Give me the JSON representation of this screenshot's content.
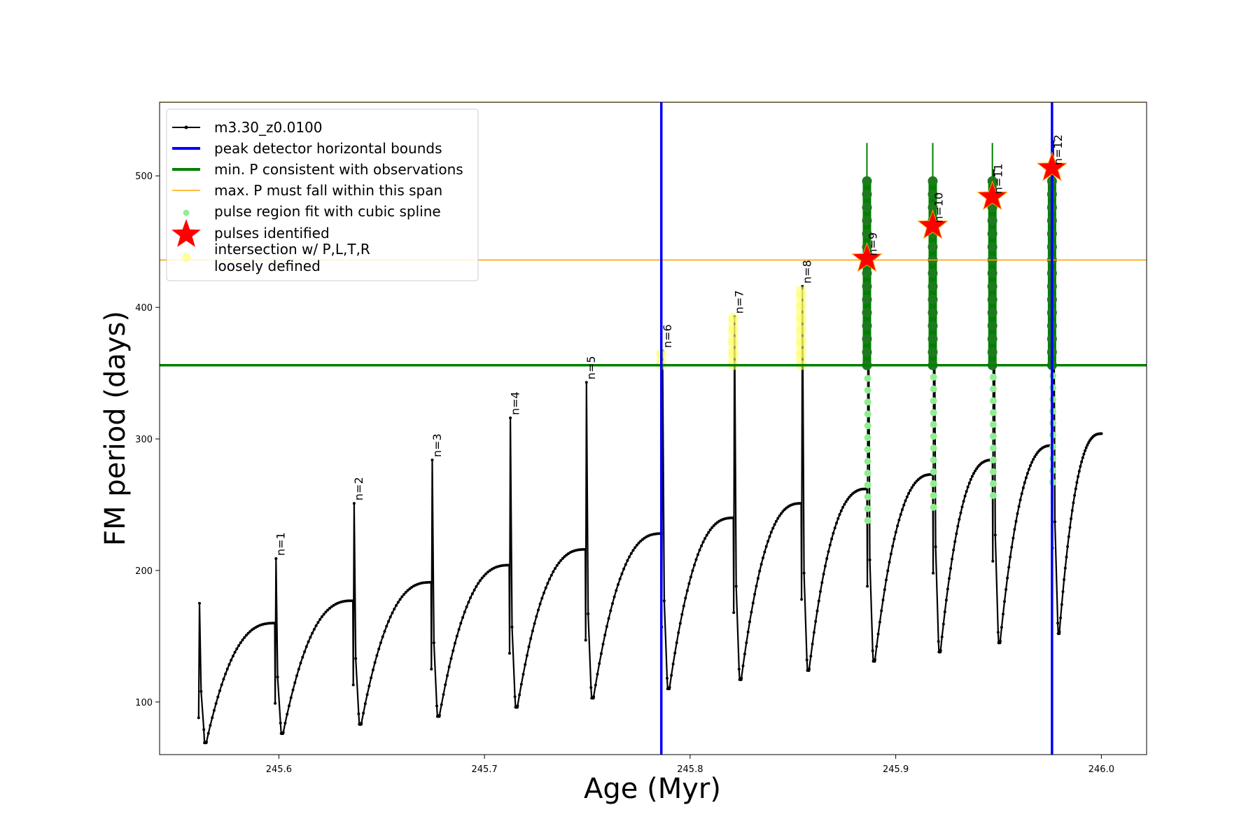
{
  "chart_data": {
    "type": "line",
    "xlabel": "Age (Myr)",
    "ylabel": "FM period (days)",
    "xlim": [
      245.542,
      246.022
    ],
    "ylim": [
      60,
      556
    ],
    "x_ticks": [
      245.6,
      245.7,
      245.8,
      245.9,
      246.0
    ],
    "x_tick_labels": [
      "245.6",
      "245.7",
      "245.8",
      "245.9",
      "246.0"
    ],
    "y_ticks": [
      100,
      200,
      300,
      400,
      500
    ],
    "y_tick_labels": [
      "100",
      "200",
      "300",
      "400",
      "500"
    ],
    "grid": false,
    "legend": {
      "position": "top-left",
      "entries": [
        {
          "label": "m3.30_z0.0100",
          "color": "#000000",
          "style": "line-marker"
        },
        {
          "label": "peak detector horizontal bounds",
          "color": "#0000ff",
          "style": "line-thick"
        },
        {
          "label": "min. P consistent with observations",
          "color": "#008000",
          "style": "line-thick"
        },
        {
          "label": "max. P must fall within this span",
          "color": "#ffa500",
          "style": "line-thin"
        },
        {
          "label": "pulse region fit with cubic spline",
          "color": "#90ee90",
          "style": "dot"
        },
        {
          "label": "pulses identified",
          "color": "#ff0000",
          "style": "star"
        },
        {
          "label": "intersection w/ P,L,T,R\nloosely defined",
          "color": "#ffff66",
          "style": "diamond"
        }
      ]
    },
    "reference_lines": {
      "vertical_bounds_x": [
        245.786,
        245.976
      ],
      "min_period_y": 356,
      "max_period_y": 436,
      "top_span_y": 556
    },
    "pulses": [
      {
        "n": 1,
        "x": 245.598,
        "start": 160,
        "drop": 99,
        "peak": 209,
        "minimum": 76,
        "next_start": 177,
        "label": "n=1",
        "highlight": false,
        "identified": false,
        "cubic_fit": false
      },
      {
        "n": 2,
        "x": 245.636,
        "start": 177,
        "drop": 113,
        "peak": 251,
        "minimum": 83,
        "next_start": 191,
        "label": "n=2",
        "highlight": false,
        "identified": false,
        "cubic_fit": false
      },
      {
        "n": 3,
        "x": 245.674,
        "start": 191,
        "drop": 125,
        "peak": 284,
        "minimum": 89,
        "next_start": 204,
        "label": "n=3",
        "highlight": false,
        "identified": false,
        "cubic_fit": false
      },
      {
        "n": 4,
        "x": 245.712,
        "start": 204,
        "drop": 137,
        "peak": 316,
        "minimum": 96,
        "next_start": 216,
        "label": "n=4",
        "highlight": false,
        "identified": false,
        "cubic_fit": false
      },
      {
        "n": 5,
        "x": 245.749,
        "start": 216,
        "drop": 147,
        "peak": 343,
        "minimum": 103,
        "next_start": 228,
        "label": "n=5",
        "highlight": false,
        "identified": false,
        "cubic_fit": false
      },
      {
        "n": 6,
        "x": 245.786,
        "start": 228,
        "drop": 157,
        "peak": 367,
        "minimum": 110,
        "next_start": 240,
        "label": "n=6",
        "highlight": true,
        "identified": false,
        "cubic_fit": false
      },
      {
        "n": 7,
        "x": 245.821,
        "start": 240,
        "drop": 168,
        "peak": 393,
        "minimum": 117,
        "next_start": 251,
        "label": "n=7",
        "highlight": true,
        "identified": false,
        "cubic_fit": false
      },
      {
        "n": 8,
        "x": 245.854,
        "start": 251,
        "drop": 178,
        "peak": 416,
        "minimum": 124,
        "next_start": 262,
        "label": "n=8",
        "highlight": true,
        "identified": false,
        "cubic_fit": false
      },
      {
        "n": 9,
        "x": 245.886,
        "start": 262,
        "drop": 188,
        "peak": 525,
        "minimum": 131,
        "next_start": 273,
        "label": "n=9",
        "highlight": false,
        "identified": true,
        "star_y": 437,
        "cubic_fit": true
      },
      {
        "n": 10,
        "x": 245.918,
        "start": 273,
        "drop": 198,
        "peak": 525,
        "minimum": 138,
        "next_start": 284,
        "label": "n=10",
        "highlight": false,
        "identified": true,
        "star_y": 462,
        "cubic_fit": true
      },
      {
        "n": 11,
        "x": 245.947,
        "start": 284,
        "drop": 207,
        "peak": 525,
        "minimum": 145,
        "next_start": 295,
        "label": "n=11",
        "highlight": false,
        "identified": true,
        "star_y": 484,
        "cubic_fit": true
      },
      {
        "n": 12,
        "x": 245.976,
        "start": 295,
        "drop": 217,
        "peak": 509,
        "minimum": 152,
        "next_start": 304,
        "label": "n=12",
        "highlight": false,
        "identified": true,
        "star_y": 506,
        "cubic_fit": true
      }
    ],
    "initial_segment": {
      "x_start": 245.561,
      "start": 175,
      "drop": 88,
      "minimum": 69
    },
    "end_point": {
      "x": 246.0,
      "y": 304
    }
  }
}
